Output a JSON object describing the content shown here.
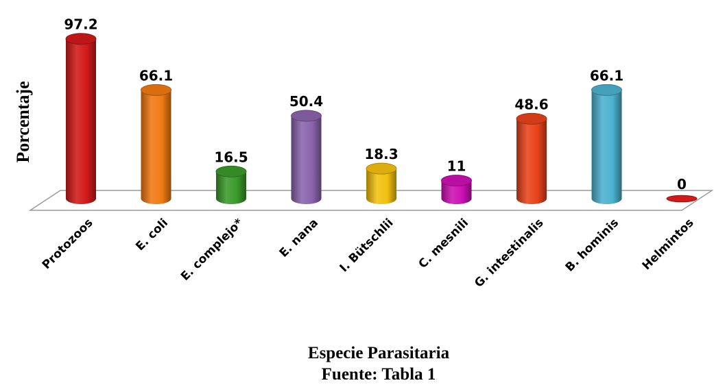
{
  "chart_data": {
    "type": "bar",
    "style": "3d-cylinder",
    "categories": [
      "Protozoos",
      "E. coli",
      "E. complejo*",
      "E. nana",
      "I. Bütschlii",
      "C. mesnili",
      "G. intestinalis",
      "B. hominis",
      "Helmintos"
    ],
    "values": [
      97.2,
      66.1,
      16.5,
      50.4,
      18.3,
      11,
      48.6,
      66.1,
      0
    ],
    "data_labels": [
      "97.2",
      "66.1",
      "16.5",
      "50.4",
      "18.3",
      "11",
      "48.6",
      "66.1",
      "0"
    ],
    "colors": [
      "#d11a1a",
      "#f07a12",
      "#3a9a2a",
      "#8a64ad",
      "#f3c010",
      "#cc10b4",
      "#e8431b",
      "#4bb1cf",
      "#d31a1a"
    ],
    "ylabel": "Porcentaje",
    "xlabel": "Especie Parasitaria",
    "footnote": "Fuente: Tabla 1",
    "ylim": [
      0,
      100
    ],
    "grid": false,
    "legend": "none"
  }
}
